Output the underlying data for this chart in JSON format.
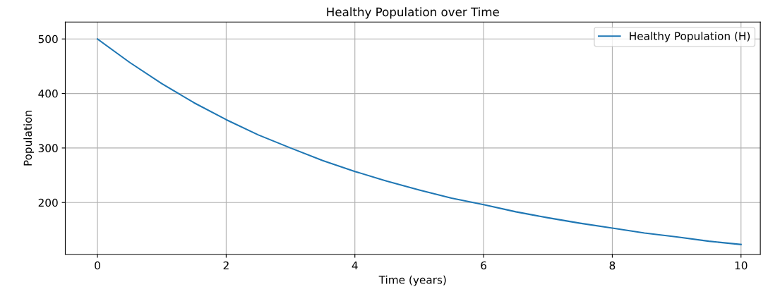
{
  "chart_data": {
    "type": "line",
    "title": "Healthy Population over Time",
    "xlabel": "Time (years)",
    "ylabel": "Population",
    "x": [
      0,
      0.5,
      1,
      1.5,
      2,
      2.5,
      3,
      3.5,
      4,
      4.5,
      5,
      5.5,
      6,
      6.5,
      7,
      7.5,
      8,
      8.5,
      9,
      9.5,
      10
    ],
    "series": [
      {
        "name": "Healthy Population (H)",
        "color": "#1f77b4",
        "values": [
          500,
          457,
          418,
          383,
          352,
          324,
          300,
          277,
          257,
          239,
          223,
          208,
          196,
          183,
          172,
          162,
          153,
          144,
          137,
          129,
          123
        ]
      }
    ],
    "xlim": [
      -0.5,
      10.3
    ],
    "ylim": [
      105,
      531
    ],
    "xticks": [
      0,
      2,
      4,
      6,
      8,
      10
    ],
    "yticks": [
      200,
      300,
      400,
      500
    ],
    "grid": true,
    "legend": "top right",
    "marker": "none",
    "line_style": "solid"
  }
}
